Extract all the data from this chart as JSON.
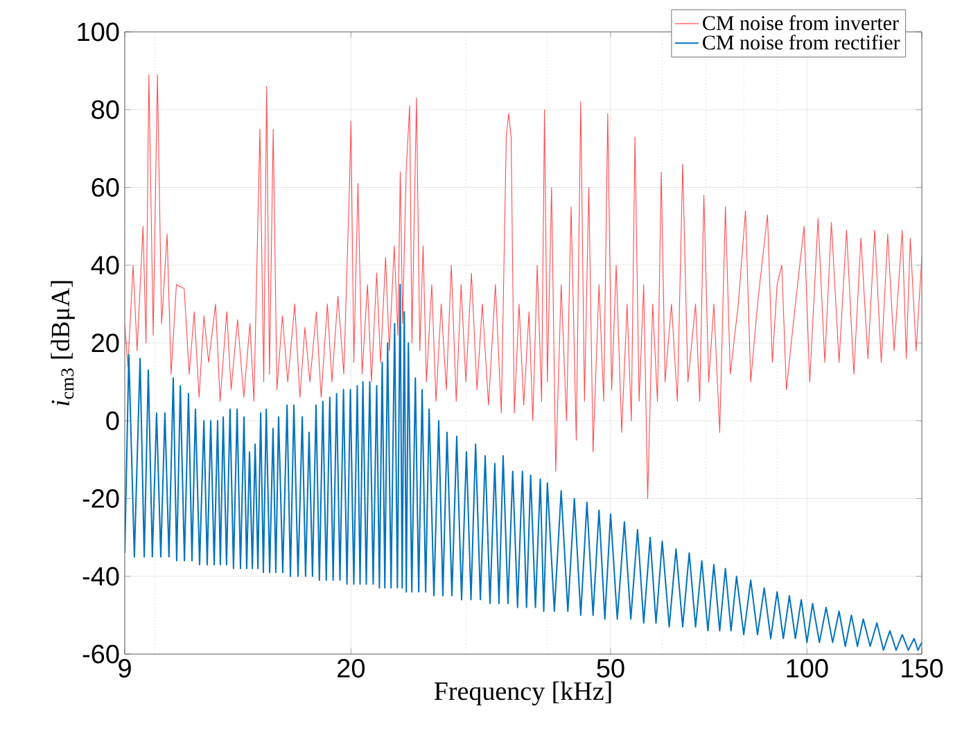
{
  "chart_data": {
    "type": "line",
    "xlabel": "Frequency [kHz]",
    "ylabel": "*i*$_{cm3}$ [dBμA]",
    "log": "x",
    "grid": true,
    "legend": "top right",
    "xlim": [
      9,
      150
    ],
    "ylim": [
      -60,
      100
    ],
    "xticks": [
      9,
      20,
      50,
      100,
      150
    ],
    "yticks": [
      -60,
      -40,
      -20,
      0,
      20,
      40,
      60,
      80,
      100
    ],
    "series": [
      {
        "name": "CM noise from inverter",
        "color": "#ff4a4f",
        "x": [
          9,
          9.1,
          9.27,
          9.4,
          9.6,
          9.7,
          9.8,
          9.95,
          10.1,
          10.25,
          10.45,
          10.6,
          10.8,
          10.95,
          11.1,
          11.3,
          11.5,
          11.7,
          11.9,
          12.1,
          12.4,
          12.6,
          12.9,
          13.1,
          13.4,
          13.7,
          14.0,
          14.2,
          14.5,
          14.7,
          14.85,
          15.0,
          15.2,
          15.4,
          15.7,
          16.0,
          16.4,
          16.7,
          17.0,
          17.3,
          17.7,
          18.0,
          18.4,
          18.7,
          19.1,
          19.5,
          19.9,
          20.0,
          20.2,
          20.5,
          20.8,
          21.2,
          21.5,
          21.9,
          22.2,
          22.6,
          22.9,
          23.3,
          23.6,
          23.8,
          24.0,
          24.3,
          24.6,
          24.8,
          25.2,
          25.5,
          25.8,
          26.1,
          26.6,
          27.0,
          27.5,
          28.0,
          28.5,
          29.0,
          29.5,
          30.0,
          30.6,
          31.2,
          31.8,
          32.5,
          33.3,
          34.0,
          34.6,
          34.9,
          35.2,
          35.6,
          36.2,
          36.8,
          37.5,
          38.0,
          38.6,
          39.2,
          39.6,
          40.0,
          40.6,
          41.2,
          42,
          42.8,
          43.5,
          44.3,
          45.0,
          45.6,
          46.3,
          47,
          48,
          48.8,
          49.5,
          50.2,
          51,
          52,
          53,
          53.8,
          54.5,
          55.3,
          56.2,
          57,
          58,
          59,
          59.8,
          60.6,
          62,
          63.3,
          64.5,
          65.7,
          67.5,
          68.5,
          69.5,
          70.7,
          72,
          73.5,
          75,
          76.3,
          78.5,
          80.5,
          82,
          84,
          87,
          88.5,
          90,
          91.5,
          93,
          96,
          99,
          101,
          104,
          106.5,
          109,
          112,
          115,
          118,
          121,
          124,
          127,
          130,
          133,
          136,
          140,
          142,
          144,
          147,
          150
        ],
        "values": [
          25,
          14,
          40,
          18,
          50,
          20,
          89,
          22,
          89,
          25,
          48,
          12,
          35,
          null,
          34,
          12,
          28,
          6,
          27,
          15,
          30,
          5,
          28,
          8,
          26,
          6,
          25,
          5,
          75,
          10,
          86,
          12,
          75,
          8,
          27,
          10,
          30,
          6,
          24,
          10,
          28,
          6,
          30,
          10,
          32,
          12,
          61,
          77,
          15,
          61,
          12,
          35,
          10,
          38,
          15,
          42,
          18,
          45,
          22,
          64,
          25,
          64,
          81,
          20,
          83,
          18,
          45,
          10,
          35,
          5,
          30,
          8,
          40,
          5,
          35,
          10,
          38,
          8,
          30,
          4,
          35,
          2,
          73,
          79,
          73,
          2,
          30,
          4,
          28,
          0,
          40,
          5,
          80,
          10,
          60,
          -13,
          35,
          0,
          55,
          -5,
          82,
          5,
          60,
          -8,
          35,
          5,
          79,
          8,
          40,
          -3,
          30,
          0,
          73,
          5,
          35,
          -20,
          30,
          5,
          64,
          10,
          30,
          5,
          66,
          10,
          30,
          5,
          58,
          10,
          30,
          -3,
          55,
          12,
          30,
          54,
          10,
          30,
          53,
          15,
          35,
          40,
          8,
          30,
          50,
          10,
          52,
          15,
          51,
          15,
          49,
          12,
          47,
          16,
          49,
          15,
          48,
          18,
          49,
          16,
          47,
          18,
          42
        ]
      },
      {
        "name": "CM noise from rectifier",
        "color": "#0072bd",
        "x": [
          9,
          9.13,
          9.31,
          9.5,
          9.64,
          9.78,
          9.92,
          10.07,
          10.22,
          10.37,
          10.52,
          10.68,
          10.81,
          10.95,
          11.11,
          11.27,
          11.41,
          11.55,
          11.72,
          11.9,
          12.04,
          12.19,
          12.34,
          12.49,
          12.61,
          12.74,
          12.89,
          13.05,
          13.21,
          13.38,
          13.54,
          13.71,
          13.84,
          13.98,
          14.12,
          14.26,
          14.4,
          14.54,
          14.68,
          14.83,
          15.01,
          15.19,
          15.34,
          15.49,
          15.72,
          15.96,
          16.15,
          16.35,
          16.59,
          16.84,
          17.04,
          17.25,
          17.46,
          17.68,
          17.89,
          18.11,
          18.33,
          18.56,
          18.78,
          19.01,
          19.24,
          19.48,
          19.72,
          19.96,
          20.2,
          20.45,
          20.65,
          20.86,
          21.11,
          21.37,
          21.63,
          21.9,
          22.11,
          22.33,
          22.54,
          22.76,
          23.04,
          23.33,
          23.56,
          23.79,
          23.96,
          24.14,
          24.31,
          24.49,
          24.79,
          25.1,
          25.4,
          25.71,
          26.03,
          26.35,
          26.8,
          27.26,
          27.66,
          28.07,
          28.56,
          29.05,
          29.55,
          30.06,
          30.55,
          31.05,
          31.58,
          32.12,
          32.67,
          33.23,
          33.72,
          34.22,
          34.81,
          35.4,
          36.01,
          36.63,
          37.17,
          37.71,
          38.36,
          39.02,
          39.5,
          40,
          41,
          42,
          43,
          44,
          45,
          46,
          47,
          48,
          49,
          50,
          51.2,
          52.5,
          53.7,
          55,
          56.2,
          57.5,
          58.7,
          60,
          61.5,
          63,
          64.5,
          66,
          67.5,
          69,
          70.5,
          72,
          73.5,
          75,
          76.5,
          78,
          80,
          82,
          84,
          86,
          88,
          90,
          92,
          94,
          96,
          98,
          100,
          102,
          104.5,
          107,
          109.5,
          112,
          114.5,
          117,
          119.5,
          122,
          125,
          128,
          131,
          134,
          137,
          140,
          143,
          146,
          148,
          150
        ],
        "values": [
          -34,
          17,
          -35,
          16,
          -35,
          13,
          -35,
          2,
          -35,
          2,
          -35,
          11,
          -36,
          9,
          -36,
          7,
          -36,
          3,
          -37,
          0,
          -37,
          0,
          -37,
          0,
          -37,
          1,
          -37,
          3,
          -38,
          3,
          -38,
          1,
          -38,
          -8,
          -38,
          -6,
          -38,
          2,
          -39,
          3,
          -39,
          -2,
          -39,
          1,
          -39,
          4,
          -40,
          4,
          -40,
          1,
          -40,
          -3,
          -40,
          4,
          -41,
          5,
          -41,
          6,
          -41,
          7,
          -41,
          8,
          -42,
          8,
          -42,
          9,
          -42,
          10,
          -42,
          10,
          -42,
          9,
          -43,
          15,
          -43,
          20,
          -43,
          25,
          -43,
          35,
          -43,
          28,
          -44,
          20,
          -44,
          11,
          -44,
          8,
          -44,
          3,
          -45,
          0,
          -45,
          -3,
          -45,
          -4,
          -46,
          -8,
          -46,
          -6,
          -46,
          -9,
          -47,
          -11,
          -47,
          -9,
          -47,
          -13,
          -48,
          -13,
          -48,
          -14,
          -48,
          -15,
          -49,
          -16,
          -49,
          -18,
          -49,
          -20,
          -50,
          -21,
          -50,
          -23,
          -51,
          -24,
          -51,
          -26,
          -51,
          -28,
          -52,
          -30,
          -52,
          -31,
          -53,
          -33,
          -53,
          -34,
          -53,
          -36,
          -54,
          -37,
          -54,
          -38,
          -54,
          -40,
          -55,
          -41,
          -55,
          -43,
          -56,
          -44,
          -56,
          -45,
          -56,
          -46,
          -57,
          -47,
          -57,
          -48,
          -57,
          -49,
          -58,
          -50,
          -58,
          -51,
          -58,
          -52,
          -59,
          -54,
          -59,
          -55,
          -59,
          -56,
          -59,
          -57
        ]
      }
    ]
  }
}
